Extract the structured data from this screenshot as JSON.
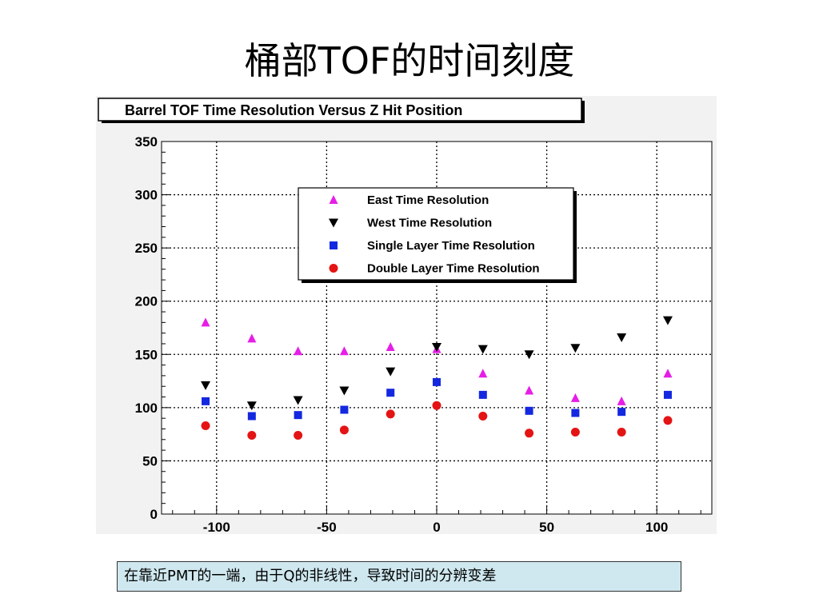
{
  "slide": {
    "title": "桶部TOF的时间刻度",
    "caption": "在靠近PMT的一端，由于Q的非线性，导致时间的分辨变差"
  },
  "chart_data": {
    "type": "scatter",
    "title": "Barrel TOF Time Resolution Versus Z Hit Position",
    "xlabel": "",
    "ylabel": "",
    "xlim": [
      -125,
      125
    ],
    "ylim": [
      0,
      350
    ],
    "x_ticks": [
      -100,
      -50,
      0,
      50,
      100
    ],
    "y_ticks": [
      0,
      50,
      100,
      150,
      200,
      250,
      300,
      350
    ],
    "grid": true,
    "legend_position": "top-center",
    "series": [
      {
        "name": "East Time Resolution",
        "marker": "triangle-up",
        "color": "#e61ee6",
        "x": [
          -105,
          -84,
          -63,
          -42,
          -21,
          0,
          21,
          42,
          63,
          84,
          105
        ],
        "y": [
          180,
          165,
          153,
          153,
          157,
          155,
          132,
          116,
          109,
          106,
          132
        ]
      },
      {
        "name": "West Time Resolution",
        "marker": "triangle-down",
        "color": "#000000",
        "x": [
          -105,
          -84,
          -63,
          -42,
          -21,
          0,
          21,
          42,
          63,
          84,
          105
        ],
        "y": [
          121,
          102,
          107,
          116,
          134,
          157,
          155,
          150,
          156,
          166,
          182
        ]
      },
      {
        "name": "Single Layer Time Resolution",
        "marker": "square",
        "color": "#1428e0",
        "x": [
          -105,
          -84,
          -63,
          -42,
          -21,
          0,
          21,
          42,
          63,
          84,
          105
        ],
        "y": [
          106,
          92,
          93,
          98,
          114,
          124,
          112,
          97,
          95,
          96,
          112
        ]
      },
      {
        "name": "Double Layer Time Resolution",
        "marker": "circle",
        "color": "#e41414",
        "x": [
          -105,
          -84,
          -63,
          -42,
          -21,
          0,
          21,
          42,
          63,
          84,
          105
        ],
        "y": [
          83,
          74,
          74,
          79,
          94,
          102,
          92,
          76,
          77,
          77,
          88
        ]
      }
    ]
  }
}
